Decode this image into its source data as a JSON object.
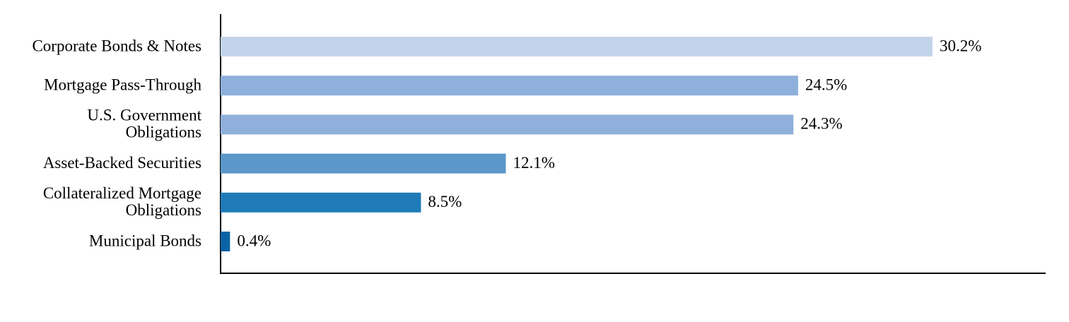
{
  "chart_data": {
    "type": "bar",
    "orientation": "horizontal",
    "categories": [
      "Corporate Bonds & Notes",
      "Mortgage Pass-Through",
      "U.S. Government\nObligations",
      "Asset-Backed Securities",
      "Collateralized Mortgage\nObligations",
      "Municipal Bonds"
    ],
    "values": [
      30.2,
      24.5,
      24.3,
      12.1,
      8.5,
      0.4
    ],
    "value_labels": [
      "30.2%",
      "24.5%",
      "24.3%",
      "12.1%",
      "8.5%",
      "0.4%"
    ],
    "colors": [
      "#c3d4ea",
      "#8fb0da",
      "#8fb0da",
      "#5b97c9",
      "#1f7bb8",
      "#0b63a5"
    ],
    "xlim": [
      0,
      35
    ]
  }
}
